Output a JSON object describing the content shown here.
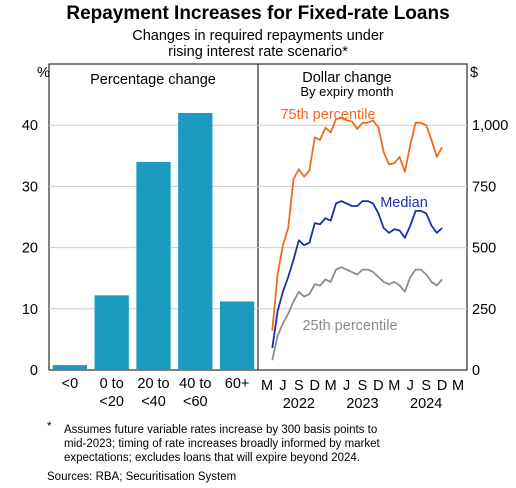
{
  "title": "Repayment Increases for Fixed-rate Loans",
  "subtitle_line1": "Changes in required repayments under",
  "subtitle_line2": "rising interest rate scenario*",
  "footnote": {
    "marker": "*",
    "line1": "Assumes future variable rates increase by 300 basis points to",
    "line2": "mid-2023; timing of rate increases broadly informed by market",
    "line3": "expectations; excludes loans that will expire beyond 2024."
  },
  "sources": "Sources: RBA; Securitisation System",
  "colors": {
    "bar": "#1a9bbf",
    "p75": "#f26a21",
    "median": "#1c2fa8",
    "p25": "#8c8c8c"
  },
  "chart_data": [
    {
      "type": "bar",
      "title": "Percentage change",
      "ylabel": "%",
      "ylim": [
        0,
        50
      ],
      "yticks": [
        0,
        10,
        20,
        30,
        40
      ],
      "categories": [
        [
          "<0"
        ],
        [
          "0 to",
          "<20"
        ],
        [
          "20 to",
          "<40"
        ],
        [
          "40 to",
          "<60"
        ],
        [
          "60+"
        ]
      ],
      "values": [
        0.8,
        12.2,
        34,
        42,
        11.2
      ]
    },
    {
      "type": "line",
      "title": "Dollar change",
      "subtitle": "By expiry month",
      "ylabel": "$",
      "ylim": [
        0,
        1250
      ],
      "yticks": [
        0,
        250,
        500,
        750,
        1000
      ],
      "ytick_labels": [
        "0",
        "250",
        "500",
        "750",
        "1,000"
      ],
      "x_month_labels": [
        "M",
        "J",
        "S",
        "D",
        "M",
        "J",
        "S",
        "D",
        "M",
        "J",
        "S",
        "D",
        "M"
      ],
      "x_year_labels": [
        "2022",
        "2023",
        "2024"
      ],
      "x_range": [
        "2022-03",
        "2025-03"
      ],
      "x": [
        "2022-04",
        "2022-05",
        "2022-06",
        "2022-07",
        "2022-08",
        "2022-09",
        "2022-10",
        "2022-11",
        "2022-12",
        "2023-01",
        "2023-02",
        "2023-03",
        "2023-04",
        "2023-05",
        "2023-06",
        "2023-07",
        "2023-08",
        "2023-09",
        "2023-10",
        "2023-11",
        "2023-12",
        "2024-01",
        "2024-02",
        "2024-03",
        "2024-04",
        "2024-05",
        "2024-06",
        "2024-07",
        "2024-08",
        "2024-09",
        "2024-10",
        "2024-11",
        "2024-12"
      ],
      "series": [
        {
          "name": "75th percentile",
          "values": [
            160,
            390,
            510,
            580,
            780,
            820,
            790,
            815,
            950,
            940,
            990,
            970,
            1025,
            1030,
            1020,
            1015,
            985,
            1010,
            1010,
            1020,
            990,
            890,
            840,
            845,
            870,
            810,
            920,
            1010,
            1010,
            1000,
            940,
            870,
            910
          ]
        },
        {
          "name": "Median",
          "values": [
            90,
            240,
            320,
            380,
            450,
            530,
            510,
            520,
            600,
            595,
            620,
            610,
            680,
            690,
            680,
            670,
            670,
            690,
            690,
            680,
            640,
            580,
            560,
            575,
            570,
            540,
            590,
            650,
            650,
            640,
            590,
            560,
            580
          ]
        },
        {
          "name": "25th percentile",
          "values": [
            40,
            140,
            190,
            230,
            280,
            320,
            300,
            310,
            350,
            345,
            370,
            360,
            410,
            420,
            410,
            400,
            390,
            410,
            410,
            400,
            380,
            360,
            350,
            360,
            345,
            320,
            380,
            410,
            410,
            390,
            360,
            345,
            370
          ]
        }
      ]
    }
  ]
}
